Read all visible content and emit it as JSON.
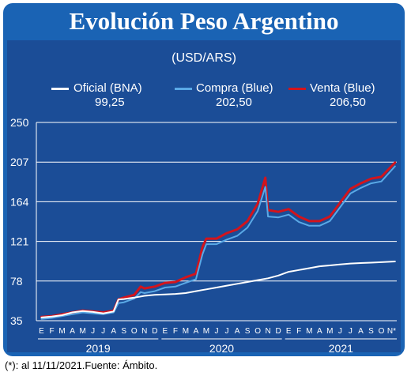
{
  "header": {
    "title": "Evolución Peso Argentino"
  },
  "footnote": "(*): al 11/11/2021.Fuente: Ámbito.",
  "colors": {
    "frame": "#1a63b4",
    "panel": "#1b4d97",
    "oficial": "#ffffff",
    "compra": "#5aa9e6",
    "venta": "#d3141c",
    "grid": "#ffffff"
  },
  "chart_data": {
    "type": "line",
    "subtitle": "(USD/ARS)",
    "y_ticks": [
      35,
      78,
      121,
      164,
      207,
      250
    ],
    "ylim": [
      35,
      250
    ],
    "grid": true,
    "legend_position": "top",
    "months": [
      "E",
      "F",
      "M",
      "A",
      "M",
      "J",
      "J",
      "A",
      "S",
      "O",
      "N",
      "D",
      "E",
      "F",
      "M",
      "A",
      "M",
      "J",
      "J",
      "A",
      "S",
      "O",
      "N",
      "D",
      "E",
      "F",
      "M",
      "A",
      "M",
      "J",
      "J",
      "A",
      "S",
      "O",
      "N*"
    ],
    "years": [
      "2019",
      "2020",
      "2021"
    ],
    "x_start": "2019-01",
    "series": [
      {
        "key": "oficial",
        "name": "Oficial (BNA)",
        "latest_label": "99,25",
        "x": [
          "2019-01",
          "2019-02",
          "2019-03",
          "2019-04",
          "2019-05",
          "2019-06",
          "2019-07",
          "2019-08",
          "2019-08-15",
          "2019-09",
          "2019-10",
          "2019-11",
          "2019-12",
          "2020-01",
          "2020-02",
          "2020-03",
          "2020-04",
          "2020-05",
          "2020-06",
          "2020-07",
          "2020-08",
          "2020-09",
          "2020-10",
          "2020-11",
          "2020-12",
          "2021-01",
          "2021-02",
          "2021-03",
          "2021-04",
          "2021-05",
          "2021-06",
          "2021-07",
          "2021-08",
          "2021-09",
          "2021-10",
          "2021-11-11"
        ],
        "values": [
          38.5,
          39.5,
          41,
          44,
          45.5,
          44.5,
          43,
          45,
          58,
          58.5,
          60,
          62,
          63,
          63.5,
          64,
          65,
          67,
          69,
          71,
          73,
          75,
          77,
          79,
          81,
          84,
          88,
          90,
          92,
          94,
          95,
          96,
          97,
          97.5,
          98,
          98.5,
          99.25
        ]
      },
      {
        "key": "compra",
        "name": "Compra (Blue)",
        "latest_label": "202,50",
        "x": [
          "2019-01",
          "2019-02",
          "2019-03",
          "2019-04",
          "2019-05",
          "2019-06",
          "2019-07",
          "2019-08",
          "2019-08-15",
          "2019-09",
          "2019-10",
          "2019-10-20",
          "2019-11",
          "2019-12",
          "2020-01",
          "2020-02",
          "2020-03",
          "2020-04",
          "2020-04-20",
          "2020-05",
          "2020-06",
          "2020-07",
          "2020-08",
          "2020-09",
          "2020-10",
          "2020-10-23",
          "2020-11",
          "2020-12",
          "2021-01",
          "2021-02",
          "2021-03",
          "2021-04",
          "2021-05",
          "2021-06",
          "2021-07",
          "2021-08",
          "2021-09",
          "2021-10",
          "2021-11-11"
        ],
        "values": [
          37,
          38,
          40,
          42,
          44,
          43,
          42,
          44,
          54,
          55,
          59,
          66,
          65,
          67,
          71,
          72,
          76,
          80,
          107,
          118,
          118,
          123,
          127,
          136,
          154,
          180,
          148,
          147,
          150,
          142,
          138,
          138,
          143,
          158,
          173,
          179,
          184,
          186,
          202.5
        ]
      },
      {
        "key": "venta",
        "name": "Venta (Blue)",
        "latest_label": "206,50",
        "x": [
          "2019-01",
          "2019-02",
          "2019-03",
          "2019-04",
          "2019-05",
          "2019-06",
          "2019-07",
          "2019-08",
          "2019-08-15",
          "2019-09",
          "2019-10",
          "2019-10-20",
          "2019-11",
          "2019-12",
          "2020-01",
          "2020-02",
          "2020-03",
          "2020-04",
          "2020-04-20",
          "2020-05",
          "2020-06",
          "2020-07",
          "2020-08",
          "2020-09",
          "2020-10",
          "2020-10-23",
          "2020-11",
          "2020-12",
          "2021-01",
          "2021-02",
          "2021-03",
          "2021-04",
          "2021-05",
          "2021-06",
          "2021-07",
          "2021-08",
          "2021-09",
          "2021-10",
          "2021-11-11"
        ],
        "values": [
          39,
          40,
          42,
          44,
          46,
          45,
          44,
          46,
          58,
          60,
          63,
          72,
          70,
          72,
          76,
          77,
          82,
          86,
          115,
          124,
          124,
          130,
          134,
          143,
          162,
          190,
          155,
          153,
          156,
          148,
          143,
          143,
          148,
          163,
          178,
          184,
          189,
          191,
          206.5
        ]
      }
    ]
  }
}
